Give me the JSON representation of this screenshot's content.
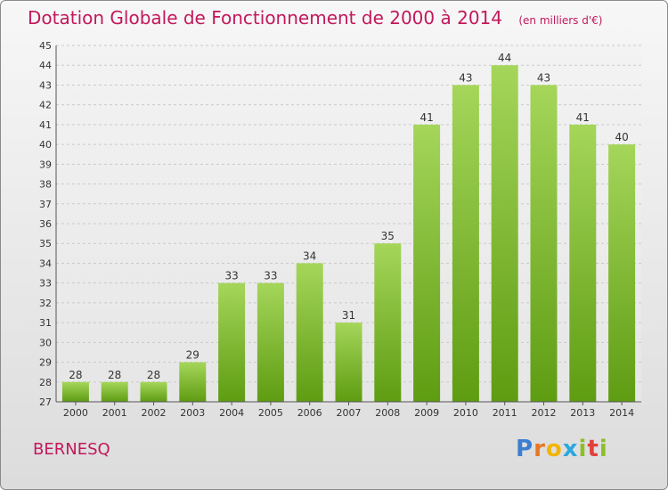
{
  "header": {
    "title": "Dotation Globale de Fonctionnement de 2000 à 2014",
    "subtitle": "(en milliers d'€)"
  },
  "footer": {
    "commune": "BERNESQ",
    "brand": "Proxiti",
    "brand_letters": [
      "P",
      "r",
      "o",
      "x",
      "i",
      "t",
      "i"
    ]
  },
  "colors": {
    "title": "#c2185b",
    "bar_top": "#a5d65a",
    "bar_bottom": "#5e9c12",
    "brand": [
      "#3c7fd1",
      "#e87722",
      "#f2b400",
      "#2aa8e0",
      "#8cbf26",
      "#e2413b",
      "#8cbf26"
    ]
  },
  "chart_data": {
    "type": "bar",
    "title": "Dotation Globale de Fonctionnement de 2000 à 2014",
    "subtitle": "(en milliers d'€)",
    "categories": [
      "2000",
      "2001",
      "2002",
      "2003",
      "2004",
      "2005",
      "2006",
      "2007",
      "2008",
      "2009",
      "2010",
      "2011",
      "2012",
      "2013",
      "2014"
    ],
    "values": [
      28,
      28,
      28,
      29,
      33,
      33,
      34,
      31,
      35,
      41,
      43,
      44,
      43,
      41,
      40
    ],
    "ylim": [
      27,
      45
    ],
    "yticks": [
      27,
      28,
      29,
      30,
      31,
      32,
      33,
      34,
      35,
      36,
      37,
      38,
      39,
      40,
      41,
      42,
      43,
      44,
      45
    ],
    "grid": true,
    "data_labels": true
  }
}
